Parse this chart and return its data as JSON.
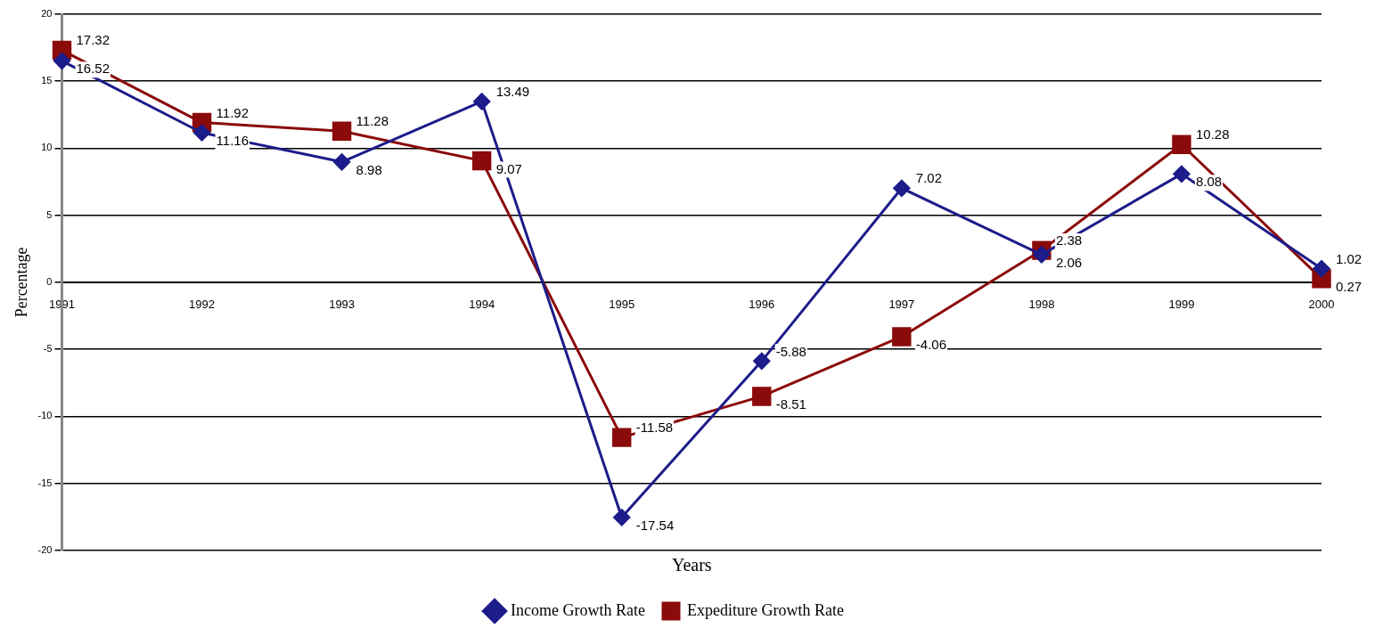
{
  "chart_data": {
    "type": "line",
    "xlabel": "Years",
    "ylabel": "Percentage",
    "categories": [
      "1991",
      "1992",
      "1993",
      "1994",
      "1995",
      "1996",
      "1997",
      "1998",
      "1999",
      "2000"
    ],
    "series": [
      {
        "name": "Income Growth Rate",
        "color": "#1c1c8a",
        "marker": "diamond",
        "values": [
          16.52,
          11.16,
          8.98,
          13.49,
          -17.54,
          -5.88,
          7.02,
          2.06,
          8.08,
          1.02
        ]
      },
      {
        "name": "Expediture Growth Rate",
        "color": "#8b0a0a",
        "marker": "square",
        "values": [
          17.32,
          11.92,
          11.28,
          9.07,
          -11.58,
          -8.51,
          -4.06,
          2.38,
          10.28,
          0.27
        ]
      }
    ],
    "ylim": [
      -20,
      20
    ],
    "yticks": [
      -20,
      -15,
      -10,
      -5,
      0,
      5,
      10,
      15,
      20
    ],
    "grid": "y",
    "legend": "bottom",
    "data_labels": true,
    "line_style": "solid"
  }
}
